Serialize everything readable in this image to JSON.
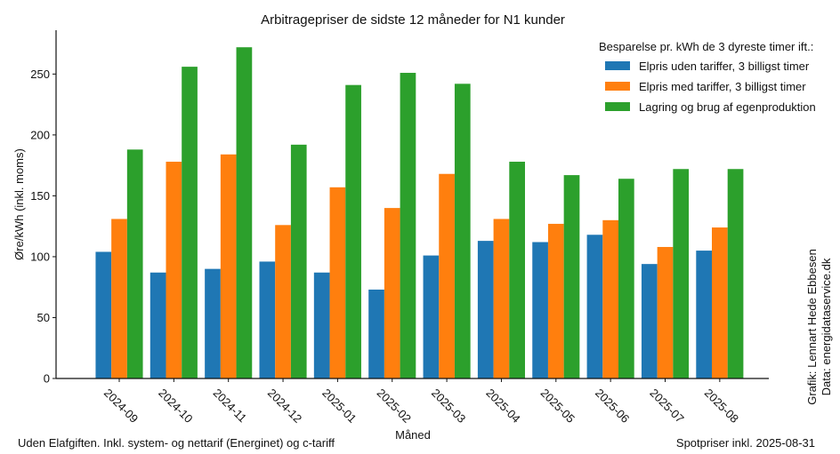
{
  "chart_data": {
    "type": "bar",
    "title": "Arbitragepriser de sidste 12 måneder for N1 kunder",
    "xlabel": "Måned",
    "ylabel": "Øre/kWh (inkl. moms)",
    "ylim": [
      0,
      286
    ],
    "yticks": [
      0,
      50,
      100,
      150,
      200,
      250
    ],
    "grid": false,
    "legend_title": "Besparelse pr. kWh de 3 dyreste timer ift.:",
    "legend_position": "top-right",
    "categories": [
      "2024-09",
      "2024-10",
      "2024-11",
      "2024-12",
      "2025-01",
      "2025-02",
      "2025-03",
      "2025-04",
      "2025-05",
      "2025-06",
      "2025-07",
      "2025-08"
    ],
    "series": [
      {
        "name": "Elpris uden tariffer, 3 billigst timer",
        "color": "#1f77b4",
        "values": [
          104,
          87,
          90,
          96,
          87,
          73,
          101,
          113,
          112,
          118,
          94,
          105
        ]
      },
      {
        "name": "Elpris med tariffer, 3 billigst timer",
        "color": "#ff7f0e",
        "values": [
          131,
          178,
          184,
          126,
          157,
          140,
          168,
          131,
          127,
          130,
          108,
          124
        ]
      },
      {
        "name": "Lagring og brug af egenproduktion",
        "color": "#2ca02c",
        "values": [
          188,
          256,
          272,
          192,
          241,
          251,
          242,
          178,
          167,
          164,
          172,
          172
        ]
      }
    ],
    "footnote_left": "Uden Elafgiften. Inkl. system- og nettarif (Energinet) og c-tariff",
    "footnote_right": "Spotpriser inkl. 2025-08-31",
    "credit_line1": "Grafik: Lennart Hede Ebbesen",
    "credit_line2": "Data: energidataservice.dk"
  }
}
